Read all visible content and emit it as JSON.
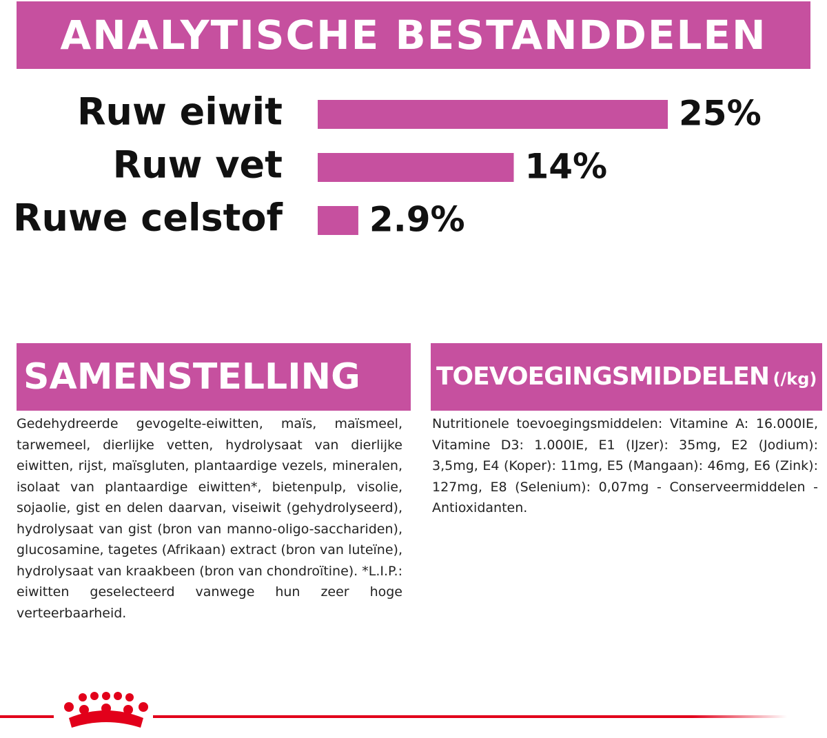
{
  "chart_data": {
    "type": "bar",
    "title": "ANALYTISCHE BESTANDDELEN",
    "categories": [
      "Ruw eiwit",
      "Ruw vet",
      "Ruwe celstof"
    ],
    "values": [
      25,
      14,
      2.9
    ],
    "value_labels": [
      "25%",
      "14%",
      "2.9%"
    ],
    "color": "#c6509f"
  },
  "samenstelling": {
    "title": "SAMENSTELLING",
    "text": "Gedehydreerde gevogelte-eiwitten, maïs, maïsmeel, tarwemeel, dierlijke vetten, hydrolysaat van dierlijke eiwitten, rijst, maïsgluten, plantaardige vezels, mineralen, isolaat van plantaardige eiwitten*, bietenpulp, visolie, sojaolie, gist en delen daarvan, viseiwit (gehydrolyseerd), hydrolysaat van gist (bron van manno-oligo-sacchariden), glucosamine, tagetes (Afrikaan) extract (bron van luteïne), hydrolysaat van kraakbeen (bron van chondroïtine). *L.I.P.: eiwitten geselecteerd vanwege hun zeer hoge verteerbaarheid."
  },
  "toevoegingsmiddelen": {
    "title": "TOEVOEGINGSMIDDELEN",
    "unit": "(/kg)",
    "text": "Nutritionele toevoegingsmiddelen: Vitamine A: 16.000IE, Vitamine D3: 1.000IE, E1 (IJzer): 35mg, E2 (Jodium): 3,5mg, E4 (Koper): 11mg, E5 (Mangaan): 46mg, E6 (Zink): 127mg, E8 (Selenium): 0,07mg - Conserveermiddelen - Antioxidanten."
  }
}
